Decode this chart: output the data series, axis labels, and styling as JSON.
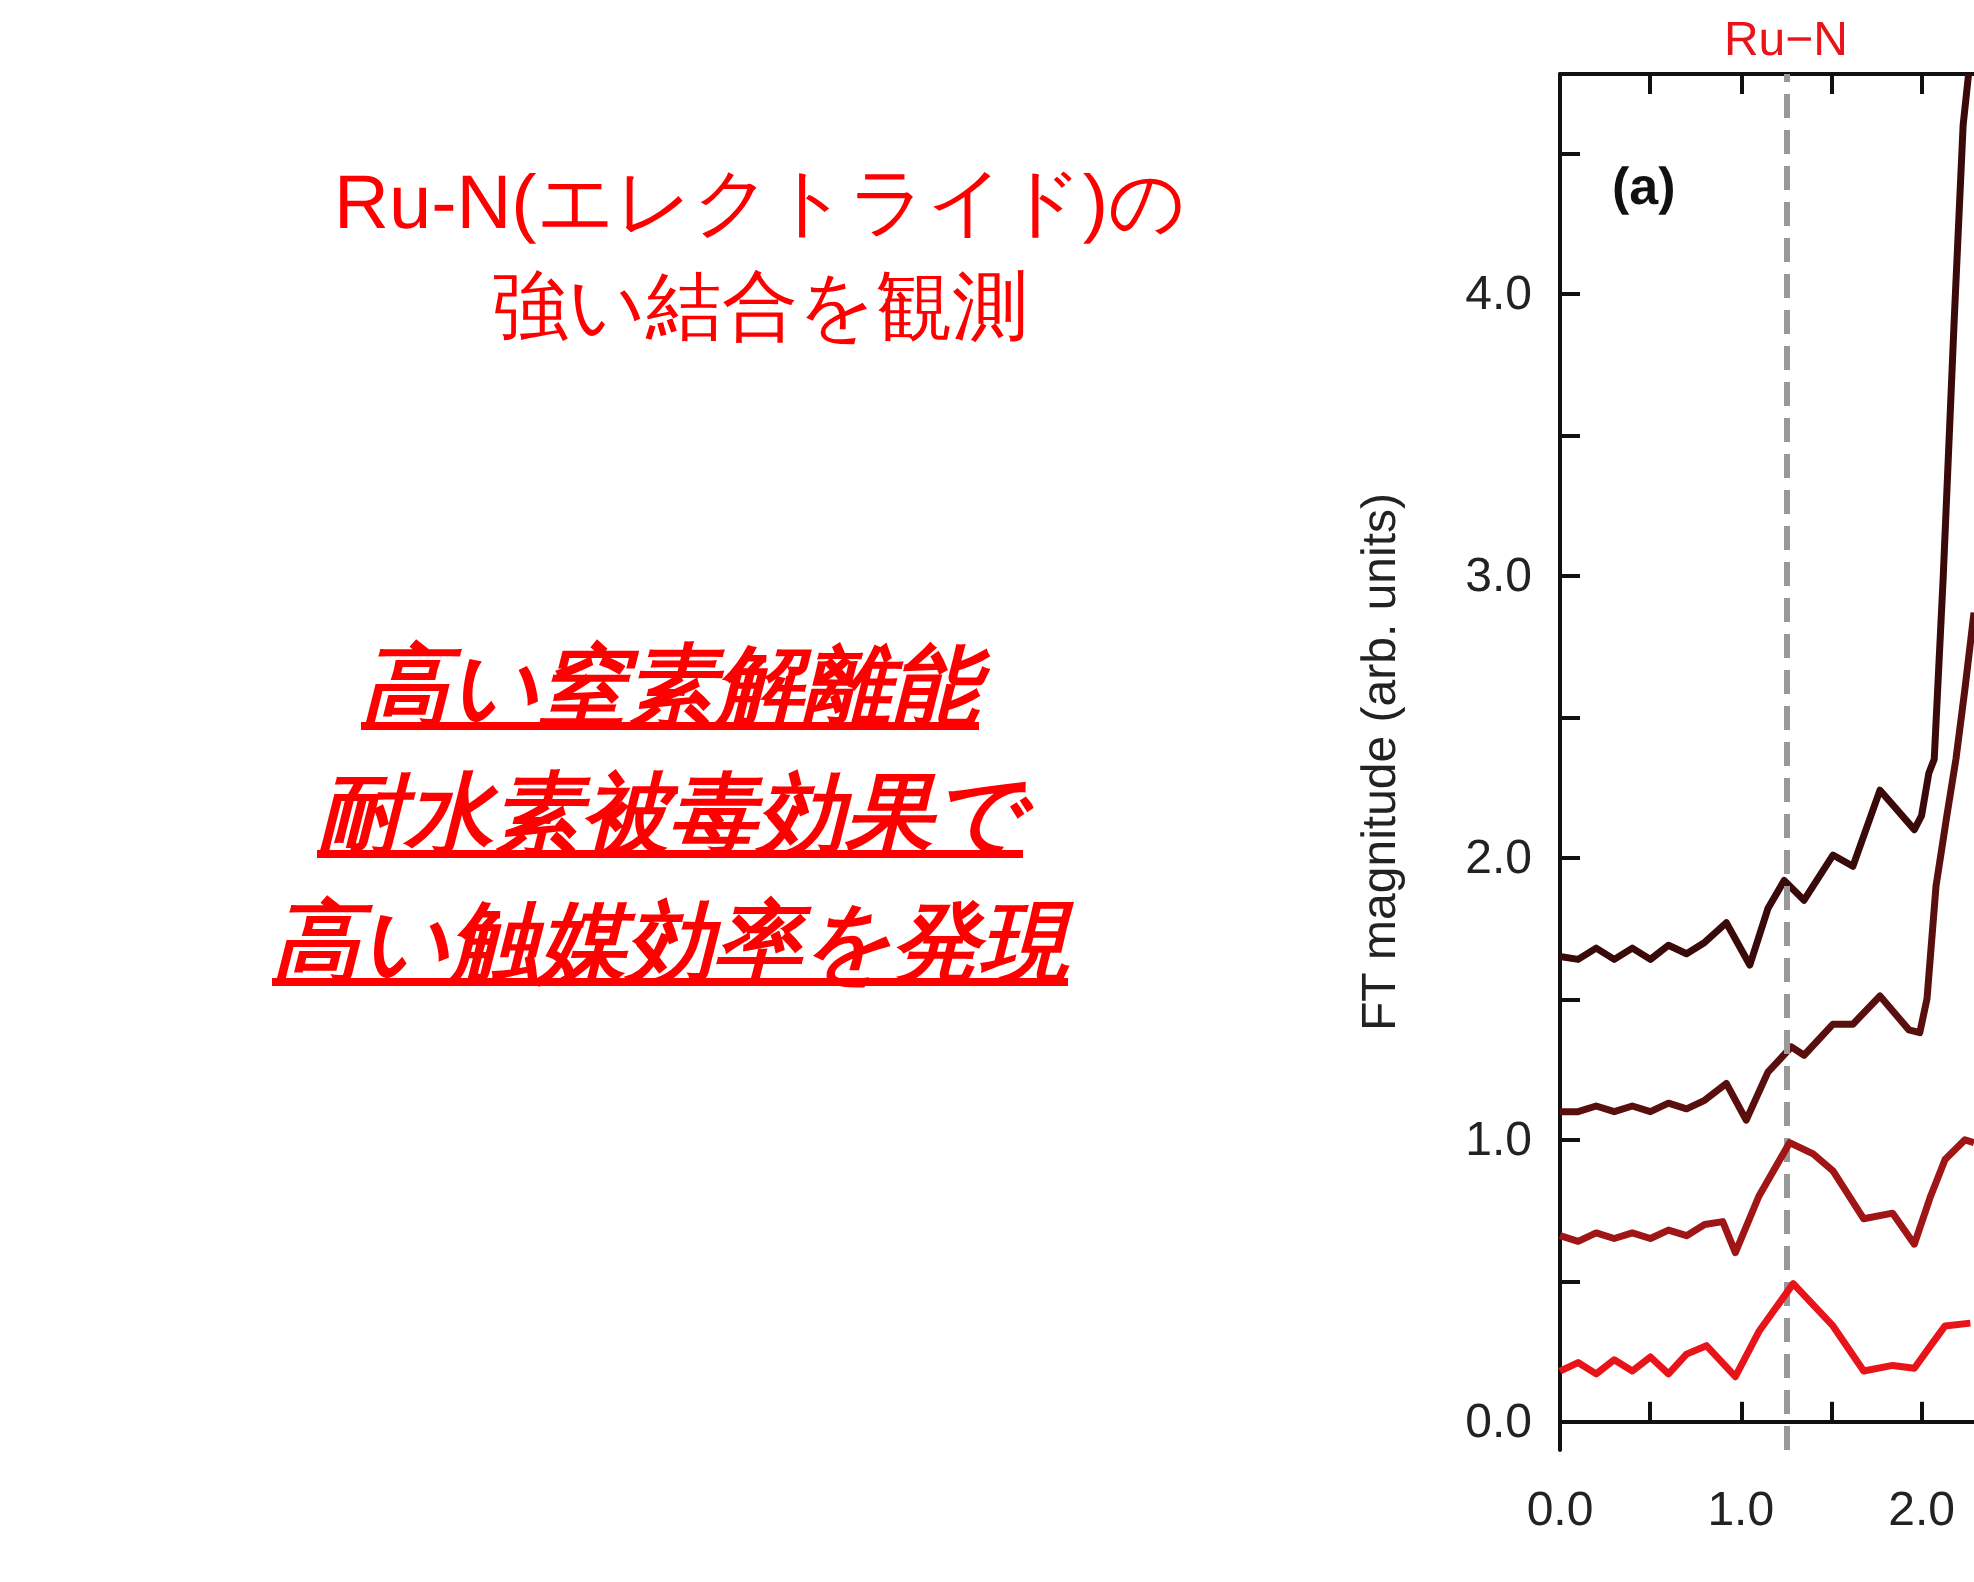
{
  "chart_data": {
    "type": "line",
    "ylabel": "FT magnitude (arb. units)",
    "annotations": [
      "Ru-N(エレクトライド)の",
      "強い結合を観測",
      "高い窒素解離能",
      "耐水素被毒効果で",
      "高い触媒効率を発現",
      "(a)"
    ],
    "xlim": [
      0,
      2.29
    ],
    "xticks": [
      {
        "value": 0,
        "label": "0.0"
      },
      {
        "value": 0.5,
        "label": null
      },
      {
        "value": 1,
        "label": "1.0"
      },
      {
        "value": 1.5,
        "label": null
      },
      {
        "value": 2,
        "label": "2.0"
      }
    ],
    "ylim": [
      -0.1,
      4.78
    ],
    "yticks": [
      {
        "value": 0,
        "label": "0.0"
      },
      {
        "value": 0.5,
        "label": null
      },
      {
        "value": 1,
        "label": "1.0"
      },
      {
        "value": 1.5,
        "label": null
      },
      {
        "value": 2,
        "label": "2.0"
      },
      {
        "value": 2.5,
        "label": null
      },
      {
        "value": 3,
        "label": "3.0"
      },
      {
        "value": 3.5,
        "label": null
      },
      {
        "value": 4,
        "label": "4.0"
      },
      {
        "value": 4.5,
        "label": null
      }
    ],
    "ref_lines": [
      {
        "axis": "x",
        "value": 1.25,
        "label": "Ru−N",
        "color": "#999999",
        "line_style": "dashed"
      }
    ],
    "grid": false,
    "marker": "none",
    "line_style": "solid",
    "series": [
      {
        "color": "#3a0a0a",
        "x": [
          0,
          0.1,
          0.2,
          0.3,
          0.4,
          0.5,
          0.6,
          0.7,
          0.8,
          0.92,
          1.05,
          1.15,
          1.24,
          1.35,
          1.51,
          1.62,
          1.77,
          1.96,
          2.0,
          2.04,
          2.07,
          2.12,
          2.18,
          2.23,
          2.26
        ],
        "values": [
          1.65,
          1.64,
          1.68,
          1.64,
          1.68,
          1.64,
          1.69,
          1.66,
          1.7,
          1.77,
          1.62,
          1.82,
          1.92,
          1.85,
          2.01,
          1.97,
          2.24,
          2.1,
          2.15,
          2.3,
          2.35,
          3.0,
          3.9,
          4.6,
          4.78
        ]
      },
      {
        "color": "#5a0f0f",
        "x": [
          0,
          0.1,
          0.2,
          0.3,
          0.4,
          0.5,
          0.6,
          0.7,
          0.8,
          0.92,
          1.03,
          1.15,
          1.28,
          1.35,
          1.51,
          1.62,
          1.77,
          1.93,
          1.99,
          2.03,
          2.08,
          2.14,
          2.19,
          2.24,
          2.29
        ],
        "values": [
          1.1,
          1.1,
          1.12,
          1.1,
          1.12,
          1.1,
          1.13,
          1.11,
          1.14,
          1.2,
          1.07,
          1.24,
          1.33,
          1.3,
          1.41,
          1.41,
          1.51,
          1.39,
          1.38,
          1.5,
          1.9,
          2.15,
          2.35,
          2.6,
          2.87
        ]
      },
      {
        "color": "#a01515",
        "x": [
          0,
          0.1,
          0.2,
          0.3,
          0.4,
          0.5,
          0.6,
          0.7,
          0.8,
          0.9,
          0.97,
          1.1,
          1.27,
          1.4,
          1.51,
          1.68,
          1.84,
          1.96,
          2.05,
          2.13,
          2.24,
          2.29
        ],
        "values": [
          0.66,
          0.64,
          0.67,
          0.65,
          0.67,
          0.65,
          0.68,
          0.66,
          0.7,
          0.71,
          0.6,
          0.8,
          0.99,
          0.95,
          0.89,
          0.72,
          0.74,
          0.63,
          0.8,
          0.93,
          1.0,
          0.99
        ]
      },
      {
        "color": "#e8141a",
        "x": [
          0,
          0.1,
          0.2,
          0.3,
          0.4,
          0.5,
          0.6,
          0.7,
          0.81,
          0.97,
          1.1,
          1.29,
          1.51,
          1.68,
          1.84,
          1.96,
          2.05,
          2.13,
          2.27
        ],
        "values": [
          0.18,
          0.21,
          0.17,
          0.22,
          0.18,
          0.23,
          0.17,
          0.24,
          0.27,
          0.16,
          0.32,
          0.49,
          0.34,
          0.18,
          0.2,
          0.19,
          0.27,
          0.34,
          0.35
        ]
      }
    ]
  }
}
